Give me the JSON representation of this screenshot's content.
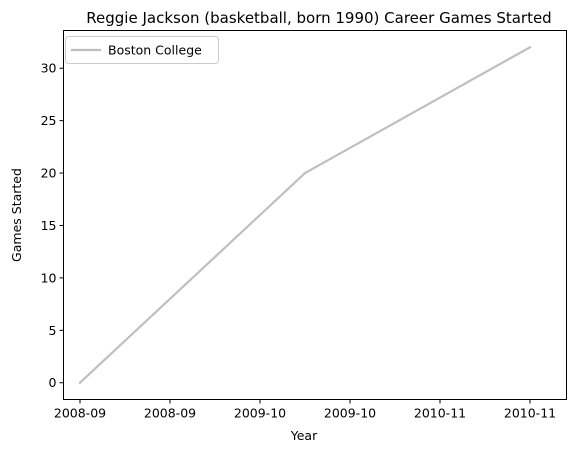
{
  "chart_data": {
    "type": "line",
    "title": "Reggie Jackson (basketball, born 1990) Career Games Started",
    "xlabel": "Year",
    "ylabel": "Games Started",
    "x": [
      "2008-09",
      "2009-10",
      "2010-11"
    ],
    "x_tick_labels": [
      "2008-09",
      "2008-09",
      "2009-10",
      "2009-10",
      "2010-11",
      "2010-11"
    ],
    "ylim": [
      -1.6,
      33.6
    ],
    "y_ticks": [
      0,
      5,
      10,
      15,
      20,
      25,
      30
    ],
    "grid": false,
    "legend_position": "upper-left",
    "series": [
      {
        "name": "Boston College",
        "color": "#bfbfbf",
        "values": [
          0,
          20,
          32
        ]
      }
    ]
  }
}
